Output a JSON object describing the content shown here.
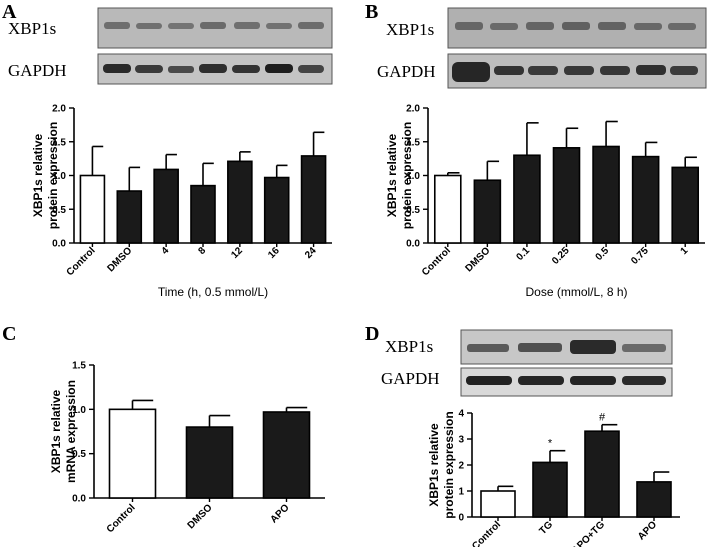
{
  "chart_data": [
    {
      "id": "A",
      "type": "bar",
      "panel_label": "A",
      "blot_labels": [
        "XBP1s",
        "GAPDH"
      ],
      "categories": [
        "Control",
        "DMSO",
        "4",
        "8",
        "12",
        "16",
        "24"
      ],
      "values": [
        1.0,
        0.77,
        1.09,
        0.85,
        1.21,
        0.97,
        1.29
      ],
      "errors": [
        0.43,
        0.35,
        0.22,
        0.33,
        0.14,
        0.18,
        0.35
      ],
      "bar_colors": [
        "#ffffff",
        "#1a1a1a",
        "#1a1a1a",
        "#1a1a1a",
        "#1a1a1a",
        "#1a1a1a",
        "#1a1a1a"
      ],
      "ylabel": [
        "XBP1s relative",
        "protein expression"
      ],
      "xlabel": "Time (h, 0.5 mmol/L)",
      "ylim": [
        0,
        2.0
      ],
      "yticks": [
        "0.0",
        "0.5",
        "1.0",
        "1.5",
        "2.0"
      ],
      "annotations": [
        "",
        "",
        "",
        "",
        "",
        "",
        ""
      ]
    },
    {
      "id": "B",
      "type": "bar",
      "panel_label": "B",
      "blot_labels": [
        "XBP1s",
        "GAPDH"
      ],
      "categories": [
        "Control",
        "DMSO",
        "0.1",
        "0.25",
        "0.5",
        "0.75",
        "1"
      ],
      "values": [
        1.0,
        0.93,
        1.3,
        1.41,
        1.43,
        1.28,
        1.12
      ],
      "errors": [
        0.04,
        0.28,
        0.48,
        0.29,
        0.37,
        0.21,
        0.15
      ],
      "bar_colors": [
        "#ffffff",
        "#1a1a1a",
        "#1a1a1a",
        "#1a1a1a",
        "#1a1a1a",
        "#1a1a1a",
        "#1a1a1a"
      ],
      "ylabel": [
        "XBP1s relative",
        "protein expression"
      ],
      "xlabel": "Dose (mmol/L, 8 h)",
      "ylim": [
        0,
        2.0
      ],
      "yticks": [
        "0.0",
        "0.5",
        "1.0",
        "1.5",
        "2.0"
      ],
      "annotations": [
        "",
        "",
        "",
        "",
        "",
        "",
        ""
      ]
    },
    {
      "id": "C",
      "type": "bar",
      "panel_label": "C",
      "blot_labels": [],
      "categories": [
        "Control",
        "DMSO",
        "APO"
      ],
      "values": [
        1.0,
        0.8,
        0.97
      ],
      "errors": [
        0.1,
        0.13,
        0.05
      ],
      "bar_colors": [
        "#ffffff",
        "#1a1a1a",
        "#1a1a1a"
      ],
      "ylabel": [
        "XBP1s relative",
        "mRNA expression"
      ],
      "xlabel": "",
      "ylim": [
        0,
        1.5
      ],
      "yticks": [
        "0.0",
        "0.5",
        "1.0",
        "1.5"
      ],
      "annotations": [
        "",
        "",
        ""
      ]
    },
    {
      "id": "D",
      "type": "bar",
      "panel_label": "D",
      "blot_labels": [
        "XBP1s",
        "GAPDH"
      ],
      "categories": [
        "Control",
        "TG",
        "APO+TG",
        "APO"
      ],
      "values": [
        1.0,
        2.1,
        3.3,
        1.35
      ],
      "errors": [
        0.18,
        0.45,
        0.25,
        0.38
      ],
      "bar_colors": [
        "#ffffff",
        "#1a1a1a",
        "#1a1a1a",
        "#1a1a1a"
      ],
      "ylabel": [
        "XBP1s relative",
        "protein expression"
      ],
      "xlabel": "",
      "ylim": [
        0,
        4
      ],
      "yticks": [
        "0",
        "1",
        "2",
        "3",
        "4"
      ],
      "annotations": [
        "",
        "*",
        "#",
        ""
      ]
    }
  ]
}
